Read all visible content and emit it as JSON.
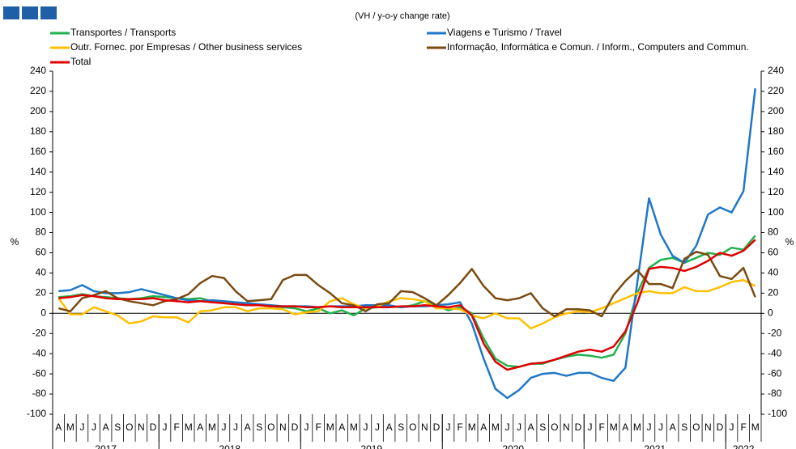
{
  "chart_data": {
    "type": "line",
    "subtitle": "(VH / y-o-y change rate)",
    "y_label": "%",
    "categories": [
      "A",
      "M",
      "J",
      "J",
      "A",
      "S",
      "O",
      "N",
      "D",
      "J",
      "F",
      "M",
      "A",
      "M",
      "J",
      "J",
      "A",
      "S",
      "O",
      "N",
      "D",
      "J",
      "F",
      "M",
      "A",
      "M",
      "J",
      "J",
      "A",
      "S",
      "O",
      "N",
      "D",
      "J",
      "F",
      "M",
      "A",
      "M",
      "J",
      "J",
      "A",
      "S",
      "O",
      "N",
      "D",
      "J",
      "F",
      "M",
      "A",
      "M",
      "J",
      "J",
      "A",
      "S",
      "O",
      "N",
      "D",
      "J",
      "F",
      "M"
    ],
    "years": [
      "2017",
      "2018",
      "2019",
      "2020",
      "2021",
      "2022"
    ],
    "ylim": [
      -100,
      240
    ],
    "yticks": [
      -100,
      -80,
      -60,
      -40,
      -20,
      0,
      20,
      40,
      60,
      80,
      100,
      120,
      140,
      160,
      180,
      200,
      220,
      240
    ],
    "series": [
      {
        "name": "Transportes / Transports",
        "color": "#22b14c",
        "values": [
          16,
          17,
          19,
          17,
          16,
          15,
          14,
          15,
          17,
          16,
          15,
          14,
          15,
          12,
          10,
          9,
          8,
          8,
          7,
          6,
          5,
          2,
          5,
          0,
          3,
          -2,
          5,
          6,
          7,
          6,
          8,
          12,
          8,
          3,
          6,
          0,
          -25,
          -45,
          -52,
          -53,
          -50,
          -50,
          -46,
          -43,
          -41,
          -42,
          -44,
          -41,
          -20,
          20,
          45,
          53,
          55,
          50,
          55,
          60,
          58,
          65,
          63,
          77
        ]
      },
      {
        "name": "Viagens e Turismo / Travel",
        "color": "#1f77c8",
        "values": [
          22,
          23,
          28,
          22,
          20,
          20,
          21,
          24,
          21,
          18,
          15,
          13,
          12,
          13,
          12,
          11,
          10,
          9,
          8,
          7,
          7,
          7,
          6,
          7,
          7,
          7,
          8,
          8,
          8,
          6,
          7,
          7,
          8,
          9,
          11,
          -10,
          -45,
          -75,
          -84,
          -76,
          -64,
          -60,
          -59,
          -62,
          -59,
          -59,
          -64,
          -67,
          -54,
          30,
          114,
          78,
          57,
          50,
          67,
          98,
          105,
          100,
          121,
          223
        ]
      },
      {
        "name": "Outr. Fornec. por Empresas / Other business services",
        "color": "#ffc000",
        "values": [
          15,
          -1,
          -1,
          6,
          2,
          -2,
          -10,
          -8,
          -3,
          -4,
          -4,
          -9,
          2,
          3,
          6,
          6,
          2,
          5,
          5,
          4,
          -1,
          1,
          2,
          12,
          15,
          9,
          5,
          7,
          12,
          15,
          14,
          12,
          5,
          5,
          4,
          -2,
          -5,
          0,
          -5,
          -5,
          -15,
          -10,
          -4,
          0,
          2,
          1,
          5,
          10,
          15,
          20,
          22,
          20,
          20,
          26,
          22,
          22,
          26,
          31,
          33,
          27
        ]
      },
      {
        "name": "Informação, Informática e Comun. / Inform., Computers and Commun.",
        "color": "#7b4a12",
        "values": [
          5,
          2,
          15,
          18,
          22,
          15,
          12,
          10,
          8,
          12,
          14,
          19,
          30,
          37,
          35,
          22,
          12,
          13,
          14,
          33,
          38,
          38,
          28,
          20,
          10,
          8,
          2,
          9,
          10,
          22,
          21,
          15,
          8,
          18,
          30,
          44,
          27,
          15,
          13,
          15,
          20,
          5,
          -3,
          4,
          4,
          3,
          -3,
          18,
          32,
          43,
          29,
          29,
          25,
          54,
          61,
          58,
          37,
          34,
          45,
          16
        ]
      },
      {
        "name": "Total",
        "color": "#e00000",
        "values": [
          15,
          16,
          18,
          17,
          15,
          14,
          14,
          14,
          15,
          13,
          12,
          11,
          12,
          11,
          10,
          9,
          8,
          8,
          7,
          7,
          7,
          6,
          6,
          7,
          6,
          6,
          6,
          6,
          6,
          7,
          7,
          8,
          7,
          6,
          8,
          -2,
          -30,
          -48,
          -56,
          -53,
          -50,
          -49,
          -46,
          -42,
          -38,
          -36,
          -38,
          -33,
          -18,
          10,
          44,
          46,
          45,
          42,
          46,
          52,
          60,
          57,
          62,
          73
        ]
      }
    ]
  }
}
